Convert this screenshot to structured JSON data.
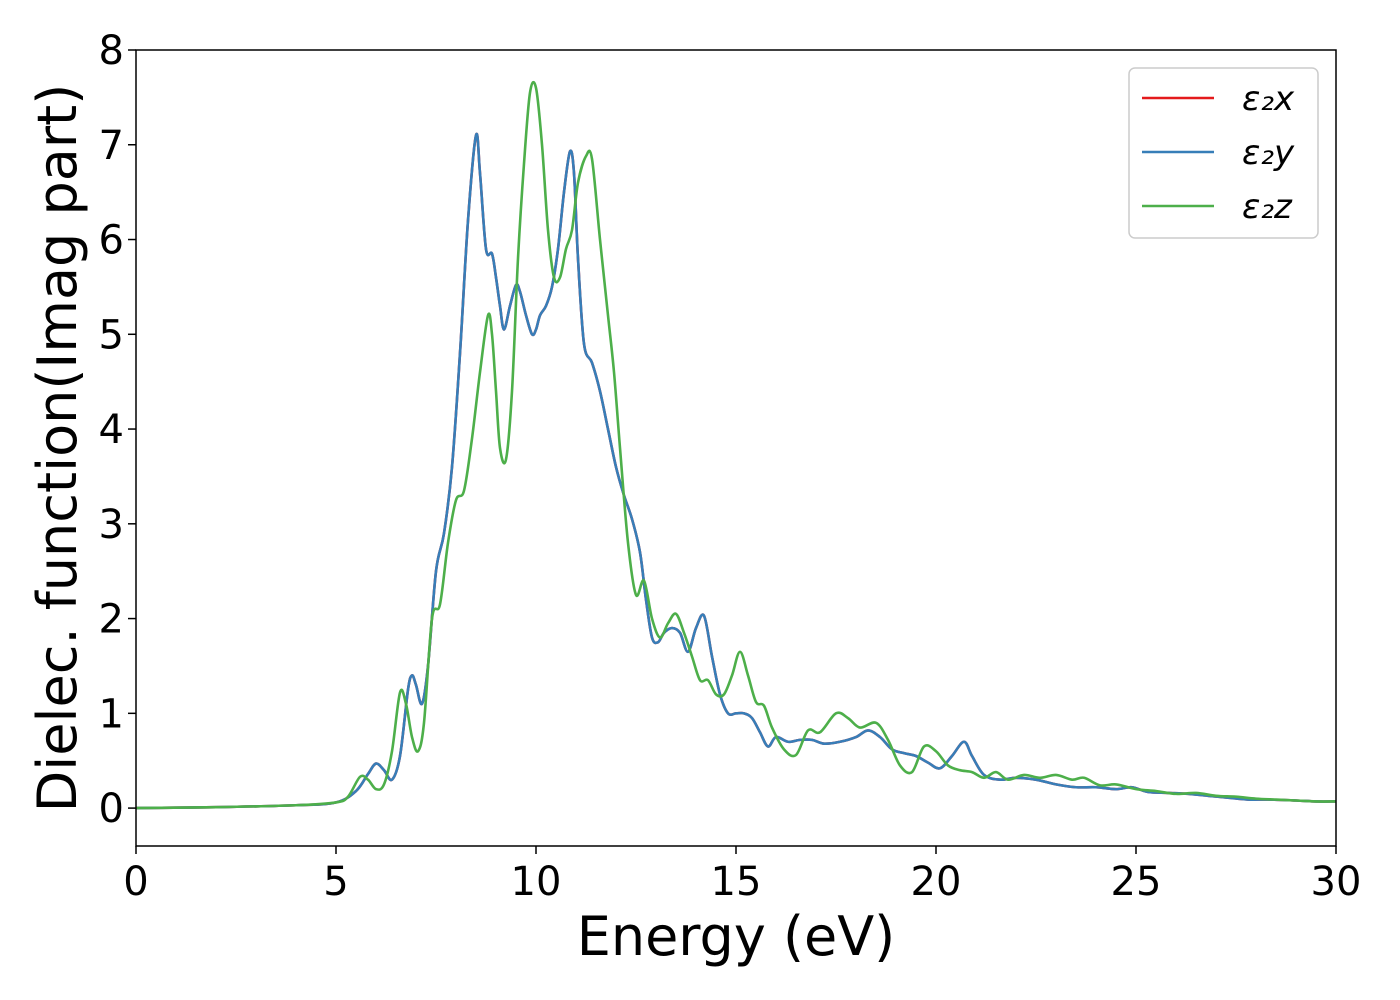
{
  "chart_data": {
    "type": "line",
    "xlabel": "Energy (eV)",
    "ylabel": "Dielec. function(Imag part)",
    "xlim": [
      0,
      30
    ],
    "ylim": [
      -0.4,
      8
    ],
    "xticks": [
      0,
      5,
      10,
      15,
      20,
      25,
      30
    ],
    "yticks": [
      0,
      1,
      2,
      3,
      4,
      5,
      6,
      7,
      8
    ],
    "grid": false,
    "legend_position": "top-right",
    "series": [
      {
        "name": "ε₂x",
        "color": "#e41a1c",
        "x": [
          0,
          2,
          4,
          5,
          5.5,
          5.8,
          6.0,
          6.2,
          6.4,
          6.6,
          6.8,
          6.9,
          7.0,
          7.15,
          7.3,
          7.5,
          7.7,
          7.9,
          8.1,
          8.3,
          8.5,
          8.6,
          8.75,
          8.9,
          9.0,
          9.1,
          9.2,
          9.35,
          9.5,
          9.6,
          9.75,
          9.9,
          10.0,
          10.1,
          10.25,
          10.4,
          10.55,
          10.7,
          10.85,
          10.95,
          11.05,
          11.2,
          11.4,
          11.6,
          11.8,
          12.0,
          12.2,
          12.4,
          12.6,
          12.75,
          12.9,
          13.05,
          13.2,
          13.4,
          13.6,
          13.8,
          14.0,
          14.2,
          14.4,
          14.6,
          14.8,
          15.0,
          15.2,
          15.4,
          15.6,
          15.8,
          16.0,
          16.3,
          16.6,
          16.9,
          17.2,
          17.6,
          18.0,
          18.3,
          18.6,
          18.9,
          19.2,
          19.5,
          19.8,
          20.1,
          20.4,
          20.7,
          20.9,
          21.2,
          21.6,
          22.0,
          22.5,
          23.0,
          23.5,
          24.0,
          24.5,
          24.9,
          25.3,
          25.8,
          26.3,
          26.8,
          27.3,
          27.8,
          28.3,
          29.0,
          29.5,
          30.0
        ],
        "values": [
          0,
          0.01,
          0.03,
          0.06,
          0.18,
          0.36,
          0.47,
          0.4,
          0.3,
          0.55,
          1.25,
          1.4,
          1.3,
          1.1,
          1.5,
          2.5,
          2.9,
          3.6,
          4.8,
          6.2,
          7.1,
          6.7,
          5.9,
          5.85,
          5.6,
          5.3,
          5.05,
          5.3,
          5.52,
          5.45,
          5.2,
          5.0,
          5.05,
          5.2,
          5.3,
          5.5,
          5.9,
          6.5,
          6.93,
          6.7,
          5.8,
          4.9,
          4.7,
          4.4,
          4.0,
          3.6,
          3.3,
          3.05,
          2.7,
          2.2,
          1.8,
          1.75,
          1.85,
          1.9,
          1.85,
          1.65,
          1.9,
          2.03,
          1.6,
          1.2,
          1.0,
          1.0,
          1.0,
          0.95,
          0.8,
          0.65,
          0.75,
          0.7,
          0.72,
          0.72,
          0.68,
          0.7,
          0.75,
          0.82,
          0.75,
          0.62,
          0.58,
          0.55,
          0.48,
          0.42,
          0.55,
          0.7,
          0.55,
          0.35,
          0.3,
          0.32,
          0.3,
          0.25,
          0.22,
          0.22,
          0.2,
          0.22,
          0.17,
          0.16,
          0.15,
          0.13,
          0.11,
          0.09,
          0.09,
          0.08,
          0.07,
          0.07
        ]
      },
      {
        "name": "ε₂y",
        "color": "#377eb8",
        "x": [
          0,
          2,
          4,
          5,
          5.5,
          5.8,
          6.0,
          6.2,
          6.4,
          6.6,
          6.8,
          6.9,
          7.0,
          7.15,
          7.3,
          7.5,
          7.7,
          7.9,
          8.1,
          8.3,
          8.5,
          8.6,
          8.75,
          8.9,
          9.0,
          9.1,
          9.2,
          9.35,
          9.5,
          9.6,
          9.75,
          9.9,
          10.0,
          10.1,
          10.25,
          10.4,
          10.55,
          10.7,
          10.85,
          10.95,
          11.05,
          11.2,
          11.4,
          11.6,
          11.8,
          12.0,
          12.2,
          12.4,
          12.6,
          12.75,
          12.9,
          13.05,
          13.2,
          13.4,
          13.6,
          13.8,
          14.0,
          14.2,
          14.4,
          14.6,
          14.8,
          15.0,
          15.2,
          15.4,
          15.6,
          15.8,
          16.0,
          16.3,
          16.6,
          16.9,
          17.2,
          17.6,
          18.0,
          18.3,
          18.6,
          18.9,
          19.2,
          19.5,
          19.8,
          20.1,
          20.4,
          20.7,
          20.9,
          21.2,
          21.6,
          22.0,
          22.5,
          23.0,
          23.5,
          24.0,
          24.5,
          24.9,
          25.3,
          25.8,
          26.3,
          26.8,
          27.3,
          27.8,
          28.3,
          29.0,
          29.5,
          30.0
        ],
        "values": [
          0,
          0.01,
          0.03,
          0.06,
          0.18,
          0.36,
          0.47,
          0.4,
          0.3,
          0.55,
          1.25,
          1.4,
          1.3,
          1.1,
          1.5,
          2.5,
          2.9,
          3.6,
          4.8,
          6.2,
          7.1,
          6.7,
          5.9,
          5.85,
          5.6,
          5.3,
          5.05,
          5.3,
          5.52,
          5.45,
          5.2,
          5.0,
          5.05,
          5.2,
          5.3,
          5.5,
          5.9,
          6.5,
          6.93,
          6.7,
          5.8,
          4.9,
          4.7,
          4.4,
          4.0,
          3.6,
          3.3,
          3.05,
          2.7,
          2.2,
          1.8,
          1.75,
          1.85,
          1.9,
          1.85,
          1.65,
          1.9,
          2.03,
          1.6,
          1.2,
          1.0,
          1.0,
          1.0,
          0.95,
          0.8,
          0.65,
          0.75,
          0.7,
          0.72,
          0.72,
          0.68,
          0.7,
          0.75,
          0.82,
          0.75,
          0.62,
          0.58,
          0.55,
          0.48,
          0.42,
          0.55,
          0.7,
          0.55,
          0.35,
          0.3,
          0.32,
          0.3,
          0.25,
          0.22,
          0.22,
          0.2,
          0.22,
          0.17,
          0.16,
          0.15,
          0.13,
          0.11,
          0.09,
          0.09,
          0.08,
          0.07,
          0.07
        ]
      },
      {
        "name": "ε₂z",
        "color": "#4daf4a",
        "x": [
          0,
          2,
          4,
          5,
          5.3,
          5.6,
          5.8,
          6.0,
          6.2,
          6.4,
          6.6,
          6.75,
          6.9,
          7.05,
          7.2,
          7.4,
          7.6,
          7.8,
          8.0,
          8.2,
          8.4,
          8.6,
          8.8,
          8.9,
          9.0,
          9.1,
          9.25,
          9.4,
          9.55,
          9.7,
          9.85,
          10.0,
          10.15,
          10.3,
          10.45,
          10.6,
          10.75,
          10.9,
          11.05,
          11.25,
          11.4,
          11.6,
          11.8,
          11.95,
          12.1,
          12.3,
          12.5,
          12.7,
          12.9,
          13.1,
          13.3,
          13.5,
          13.7,
          13.9,
          14.1,
          14.3,
          14.5,
          14.7,
          14.9,
          15.1,
          15.3,
          15.5,
          15.7,
          15.9,
          16.2,
          16.5,
          16.8,
          17.1,
          17.5,
          17.8,
          18.1,
          18.5,
          18.8,
          19.1,
          19.4,
          19.7,
          20.0,
          20.3,
          20.6,
          20.9,
          21.2,
          21.5,
          21.8,
          22.2,
          22.6,
          23.0,
          23.4,
          23.7,
          24.1,
          24.5,
          25.0,
          25.5,
          26.0,
          26.5,
          27.0,
          27.5,
          28.0,
          28.5,
          29.0,
          29.5,
          30.0
        ],
        "values": [
          0,
          0.01,
          0.03,
          0.06,
          0.12,
          0.33,
          0.3,
          0.2,
          0.25,
          0.6,
          1.22,
          1.1,
          0.75,
          0.6,
          0.9,
          2.0,
          2.15,
          2.8,
          3.25,
          3.35,
          3.9,
          4.6,
          5.2,
          5.0,
          4.4,
          3.8,
          3.68,
          4.4,
          5.8,
          6.8,
          7.55,
          7.6,
          7.0,
          6.1,
          5.6,
          5.6,
          5.9,
          6.1,
          6.6,
          6.88,
          6.85,
          6.0,
          5.2,
          4.6,
          3.8,
          2.8,
          2.25,
          2.4,
          2.0,
          1.8,
          1.95,
          2.05,
          1.85,
          1.6,
          1.35,
          1.35,
          1.2,
          1.2,
          1.4,
          1.65,
          1.4,
          1.12,
          1.08,
          0.85,
          0.62,
          0.56,
          0.82,
          0.8,
          1.0,
          0.95,
          0.85,
          0.9,
          0.72,
          0.45,
          0.38,
          0.65,
          0.6,
          0.45,
          0.4,
          0.38,
          0.32,
          0.38,
          0.3,
          0.35,
          0.32,
          0.35,
          0.3,
          0.32,
          0.24,
          0.25,
          0.2,
          0.18,
          0.15,
          0.16,
          0.13,
          0.12,
          0.1,
          0.09,
          0.08,
          0.07,
          0.07
        ]
      }
    ]
  }
}
